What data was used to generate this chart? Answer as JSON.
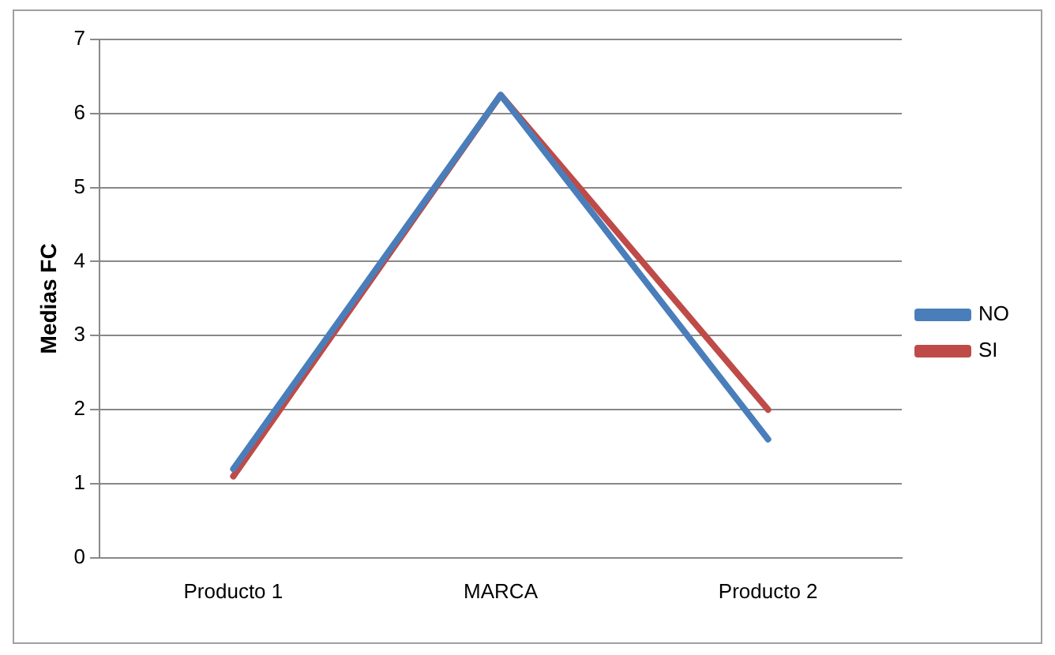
{
  "chart_data": {
    "type": "line",
    "ylabel": "Medias FC",
    "categories": [
      "Producto 1",
      "MARCA",
      "Producto 2"
    ],
    "series": [
      {
        "name": "NO",
        "color": "#4a7ebb",
        "values": [
          1.2,
          6.25,
          1.6
        ]
      },
      {
        "name": "SI",
        "color": "#be4b48",
        "values": [
          1.1,
          6.25,
          2.0
        ]
      }
    ],
    "ylim": [
      0,
      7
    ],
    "yticks": [
      0,
      1,
      2,
      3,
      4,
      5,
      6,
      7
    ],
    "grid": "y",
    "legend": "right",
    "marker": "none"
  }
}
